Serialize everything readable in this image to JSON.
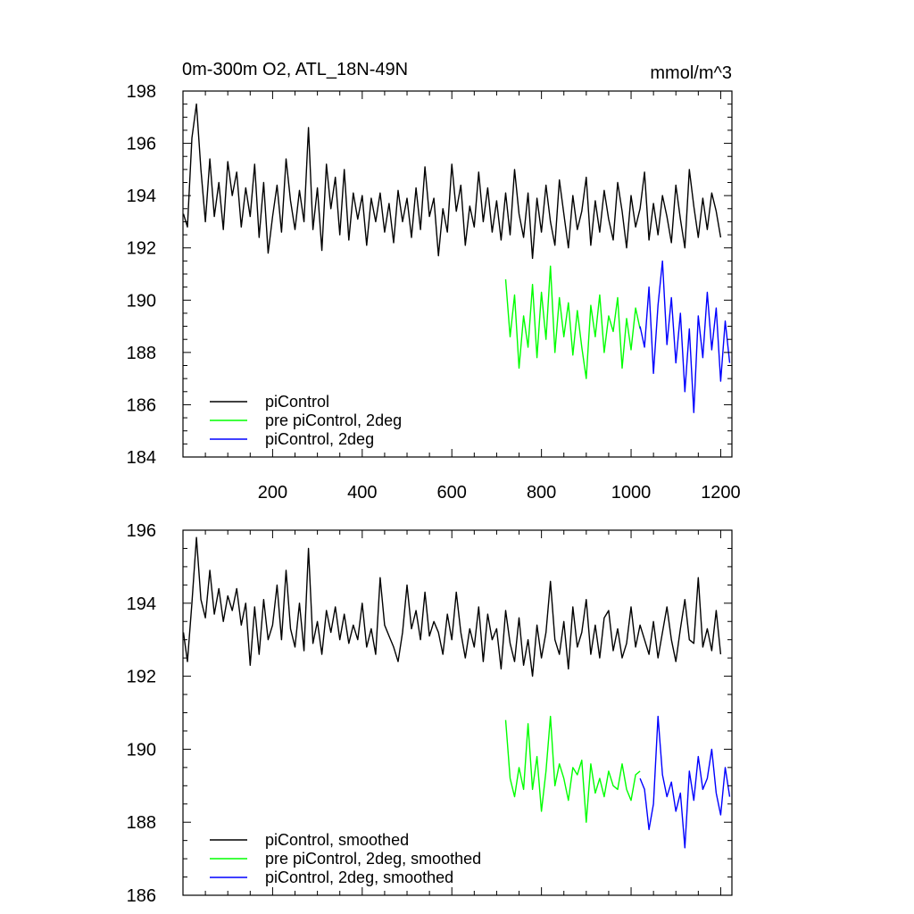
{
  "chart_data": [
    {
      "type": "line",
      "title": "0m-300m O2, ATL_18N-49N",
      "units": "mmol/m^3",
      "xlim": [
        0,
        1225
      ],
      "ylim": [
        184,
        198
      ],
      "x_ticks": [
        200,
        400,
        600,
        800,
        1000,
        1200
      ],
      "y_ticks": [
        184,
        186,
        188,
        190,
        192,
        194,
        196,
        198
      ],
      "grid": false,
      "legend_position": "bottom-left",
      "series": [
        {
          "name": "piControl",
          "color": "#000000",
          "x": [
            1,
            10,
            20,
            30,
            40,
            50,
            60,
            70,
            80,
            90,
            100,
            110,
            120,
            130,
            140,
            150,
            160,
            170,
            180,
            190,
            200,
            210,
            220,
            230,
            240,
            250,
            260,
            270,
            280,
            290,
            300,
            310,
            320,
            330,
            340,
            350,
            360,
            370,
            380,
            390,
            400,
            410,
            420,
            430,
            440,
            450,
            460,
            470,
            480,
            490,
            500,
            510,
            520,
            530,
            540,
            550,
            560,
            570,
            580,
            590,
            600,
            610,
            620,
            630,
            640,
            650,
            660,
            670,
            680,
            690,
            700,
            710,
            720,
            730,
            740,
            750,
            760,
            770,
            780,
            790,
            800,
            810,
            820,
            830,
            840,
            850,
            860,
            870,
            880,
            890,
            900,
            910,
            920,
            930,
            940,
            950,
            960,
            970,
            980,
            990,
            1000,
            1010,
            1020,
            1030,
            1040,
            1050,
            1060,
            1070,
            1080,
            1090,
            1100,
            1110,
            1120,
            1130,
            1140,
            1150,
            1160,
            1170,
            1180,
            1190,
            1200
          ],
          "values": [
            193.3,
            192.8,
            196.2,
            197.5,
            195.0,
            193.0,
            195.4,
            193.2,
            194.5,
            192.7,
            195.3,
            194.0,
            194.9,
            192.8,
            194.3,
            193.2,
            195.2,
            192.4,
            194.5,
            191.8,
            193.2,
            194.4,
            192.6,
            195.4,
            193.8,
            192.7,
            194.2,
            193.0,
            196.6,
            192.7,
            194.3,
            191.9,
            195.2,
            193.5,
            194.7,
            192.5,
            195.0,
            192.3,
            194.1,
            193.1,
            194.0,
            192.1,
            193.9,
            193.0,
            194.1,
            192.6,
            193.7,
            192.2,
            194.2,
            193.0,
            193.9,
            192.4,
            194.3,
            192.7,
            195.1,
            193.2,
            193.9,
            191.7,
            193.5,
            192.6,
            195.2,
            193.4,
            194.4,
            192.1,
            193.6,
            192.8,
            194.9,
            193.0,
            194.3,
            192.6,
            193.8,
            192.3,
            194.1,
            192.5,
            195.0,
            193.3,
            192.4,
            194.1,
            191.6,
            193.9,
            192.6,
            194.4,
            193.0,
            192.1,
            194.6,
            193.3,
            192.0,
            194.0,
            192.7,
            193.4,
            194.7,
            192.1,
            193.8,
            192.6,
            194.2,
            193.1,
            192.3,
            194.5,
            193.4,
            192.0,
            194.0,
            192.8,
            193.5,
            194.9,
            192.3,
            193.7,
            192.5,
            194.0,
            193.2,
            192.2,
            194.4,
            193.1,
            192.0,
            195.0,
            193.6,
            192.4,
            193.9,
            192.7,
            194.1,
            193.4,
            192.4
          ]
        },
        {
          "name": "pre piControl, 2deg",
          "color": "#00ff00",
          "x": [
            720,
            730,
            740,
            750,
            760,
            770,
            780,
            790,
            800,
            810,
            820,
            830,
            840,
            850,
            860,
            870,
            880,
            890,
            900,
            910,
            920,
            930,
            940,
            950,
            960,
            970,
            980,
            990,
            1000,
            1010,
            1020
          ],
          "values": [
            190.8,
            188.6,
            190.2,
            187.4,
            189.4,
            188.2,
            190.6,
            187.8,
            190.3,
            188.5,
            191.3,
            188.0,
            190.1,
            188.6,
            189.9,
            187.9,
            189.6,
            188.2,
            187.0,
            189.8,
            188.6,
            190.2,
            188.0,
            189.4,
            188.8,
            190.1,
            187.4,
            189.3,
            188.1,
            189.7,
            188.9
          ]
        },
        {
          "name": "piControl, 2deg",
          "color": "#0000ff",
          "x": [
            1020,
            1030,
            1040,
            1050,
            1060,
            1070,
            1080,
            1090,
            1100,
            1110,
            1120,
            1130,
            1140,
            1150,
            1160,
            1170,
            1180,
            1190,
            1200,
            1210,
            1220
          ],
          "values": [
            189.0,
            188.2,
            190.5,
            187.2,
            189.8,
            191.5,
            188.3,
            190.1,
            187.6,
            189.5,
            186.5,
            188.9,
            185.7,
            189.4,
            187.8,
            190.3,
            188.1,
            189.7,
            186.9,
            189.2,
            187.6
          ]
        }
      ]
    },
    {
      "type": "line",
      "xlim": [
        0,
        1225
      ],
      "ylim": [
        186,
        196
      ],
      "y_ticks": [
        186,
        188,
        190,
        192,
        194,
        196
      ],
      "grid": false,
      "legend_position": "bottom-left",
      "series": [
        {
          "name": "piControl, smoothed",
          "color": "#000000",
          "x": [
            1,
            10,
            20,
            30,
            40,
            50,
            60,
            70,
            80,
            90,
            100,
            110,
            120,
            130,
            140,
            150,
            160,
            170,
            180,
            190,
            200,
            210,
            220,
            230,
            240,
            250,
            260,
            270,
            280,
            290,
            300,
            310,
            320,
            330,
            340,
            350,
            360,
            370,
            380,
            390,
            400,
            410,
            420,
            430,
            440,
            450,
            460,
            470,
            480,
            490,
            500,
            510,
            520,
            530,
            540,
            550,
            560,
            570,
            580,
            590,
            600,
            610,
            620,
            630,
            640,
            650,
            660,
            670,
            680,
            690,
            700,
            710,
            720,
            730,
            740,
            750,
            760,
            770,
            780,
            790,
            800,
            810,
            820,
            830,
            840,
            850,
            860,
            870,
            880,
            890,
            900,
            910,
            920,
            930,
            940,
            950,
            960,
            970,
            980,
            990,
            1000,
            1010,
            1020,
            1030,
            1040,
            1050,
            1060,
            1070,
            1080,
            1090,
            1100,
            1110,
            1120,
            1130,
            1140,
            1150,
            1160,
            1170,
            1180,
            1190,
            1200
          ],
          "values": [
            193.2,
            192.4,
            194.0,
            195.8,
            194.1,
            193.6,
            194.9,
            193.7,
            194.4,
            193.5,
            194.2,
            193.8,
            194.4,
            193.4,
            194.0,
            192.3,
            193.9,
            192.6,
            194.1,
            193.0,
            193.4,
            194.5,
            193.0,
            194.9,
            193.3,
            192.8,
            194.0,
            192.7,
            195.5,
            192.9,
            193.5,
            192.6,
            193.8,
            193.2,
            193.9,
            193.0,
            193.7,
            192.9,
            193.4,
            193.0,
            194.0,
            192.8,
            193.3,
            192.6,
            194.7,
            193.4,
            193.1,
            192.8,
            192.4,
            193.2,
            194.5,
            193.3,
            193.8,
            193.0,
            194.3,
            193.1,
            193.5,
            193.2,
            192.6,
            193.7,
            193.0,
            194.3,
            193.2,
            192.5,
            193.3,
            192.8,
            193.9,
            192.4,
            193.7,
            193.0,
            193.3,
            192.2,
            193.8,
            192.9,
            192.4,
            193.6,
            192.3,
            193.0,
            192.0,
            193.4,
            192.5,
            193.2,
            194.6,
            193.0,
            192.6,
            193.5,
            192.2,
            193.9,
            192.8,
            193.2,
            194.1,
            192.6,
            193.4,
            192.5,
            193.6,
            193.8,
            192.7,
            193.3,
            192.5,
            192.9,
            193.9,
            192.8,
            193.4,
            193.0,
            192.6,
            193.5,
            192.5,
            193.2,
            193.9,
            193.0,
            192.4,
            193.3,
            194.1,
            193.0,
            192.9,
            194.7,
            192.8,
            193.3,
            192.7,
            193.8,
            192.6
          ]
        },
        {
          "name": "pre piControl, 2deg, smoothed",
          "color": "#00ff00",
          "x": [
            720,
            730,
            740,
            750,
            760,
            770,
            780,
            790,
            800,
            810,
            820,
            830,
            840,
            850,
            860,
            870,
            880,
            890,
            900,
            910,
            920,
            930,
            940,
            950,
            960,
            970,
            980,
            990,
            1000,
            1010,
            1020
          ],
          "values": [
            190.8,
            189.2,
            188.7,
            189.5,
            188.9,
            190.7,
            188.9,
            189.8,
            188.3,
            189.4,
            190.9,
            189.0,
            189.6,
            189.2,
            188.6,
            189.5,
            189.3,
            189.7,
            188.0,
            189.6,
            188.8,
            189.2,
            188.7,
            189.4,
            189.0,
            188.9,
            189.6,
            188.9,
            188.6,
            189.3,
            189.4
          ]
        },
        {
          "name": "piControl, 2deg, smoothed",
          "color": "#0000ff",
          "x": [
            1020,
            1030,
            1040,
            1050,
            1060,
            1070,
            1080,
            1090,
            1100,
            1110,
            1120,
            1130,
            1140,
            1150,
            1160,
            1170,
            1180,
            1190,
            1200,
            1210,
            1220
          ],
          "values": [
            189.2,
            188.9,
            187.8,
            188.5,
            190.9,
            189.3,
            188.7,
            189.1,
            188.3,
            188.8,
            187.3,
            189.4,
            188.6,
            189.8,
            188.9,
            189.2,
            190.0,
            188.8,
            188.2,
            189.5,
            188.7
          ]
        }
      ]
    }
  ]
}
